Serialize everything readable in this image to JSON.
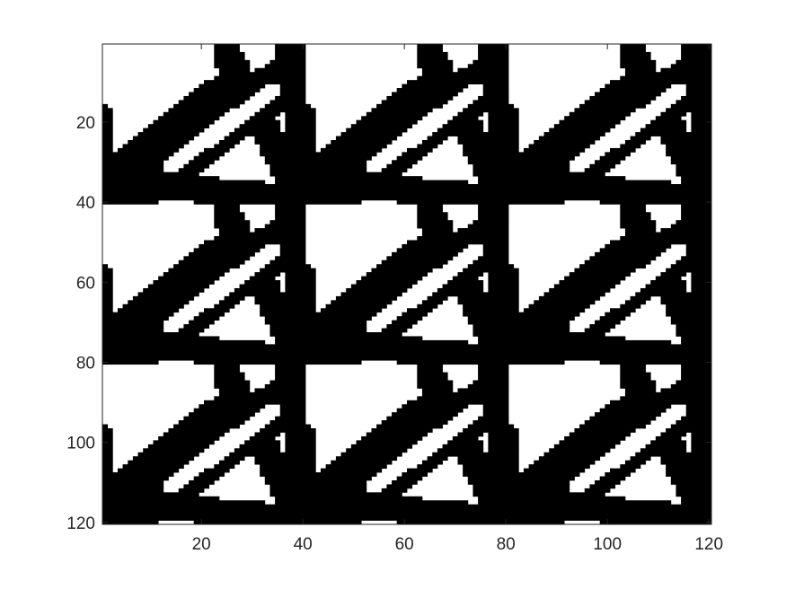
{
  "chart_data": {
    "type": "heatmap",
    "title": "",
    "xlabel": "",
    "ylabel": "",
    "xlim": [
      0.5,
      120.5
    ],
    "ylim": [
      0.5,
      120.5
    ],
    "y_direction": "reverse",
    "xticks": [
      20,
      40,
      60,
      80,
      100,
      120
    ],
    "yticks": [
      20,
      40,
      60,
      80,
      100,
      120
    ],
    "xtick_labels": [
      "20",
      "40",
      "60",
      "80",
      "100",
      "120"
    ],
    "ytick_labels": [
      "20",
      "40",
      "60",
      "80",
      "100",
      "120"
    ],
    "colormap": {
      "0": "#ffffff",
      "1": "#000000"
    },
    "grid": false,
    "structure": {
      "description_values": "binary density field of a 3x3 tiled periodic unit cell (40x40 elements)",
      "rows": 120,
      "cols": 120,
      "tile_size": 40,
      "tile_count": [
        3,
        3
      ]
    }
  }
}
